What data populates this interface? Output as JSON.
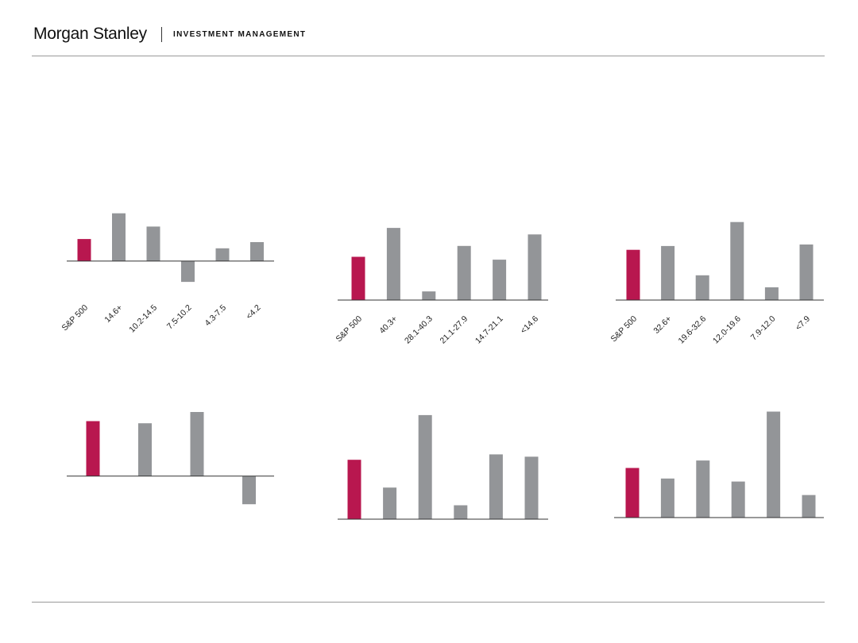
{
  "header": {
    "brand": "Morgan Stanley",
    "division": "INVESTMENT MANAGEMENT"
  },
  "colors": {
    "benchmark": "#B8174F",
    "bucket": "#939598",
    "axis": "#333333"
  },
  "chart_data": [
    {
      "type": "bar",
      "categories": [
        "S&P 500",
        "14.6+",
        "10.2-14.5",
        "7.5-10.2",
        "4.3-7.5",
        "<4.2"
      ],
      "values": [
        5.0,
        10.8,
        7.8,
        -4.7,
        2.9,
        4.3
      ],
      "ylim": [
        -7,
        12
      ],
      "grid": false
    },
    {
      "type": "bar",
      "categories": [
        "S&P 500",
        "40.3+",
        "28.1-40.3",
        "21.1-27.9",
        "14.7-21.1",
        "<14.6"
      ],
      "values": [
        6.0,
        10.0,
        1.2,
        7.5,
        5.6,
        9.1
      ],
      "ylim": [
        0,
        11
      ],
      "grid": false
    },
    {
      "type": "bar",
      "categories": [
        "S&P 500",
        "32.6+",
        "19.6-32.6",
        "12.0-19.6",
        "7.9-12.0",
        "<7.9"
      ],
      "values": [
        6.7,
        7.2,
        3.3,
        10.4,
        1.7,
        7.4
      ],
      "ylim": [
        0,
        11
      ],
      "grid": false
    },
    {
      "type": "bar",
      "categories": [
        "",
        "",
        "",
        ""
      ],
      "values": [
        7.8,
        7.5,
        9.1,
        -4.0
      ],
      "ylim": [
        -5,
        10
      ],
      "grid": false
    },
    {
      "type": "bar",
      "categories": [
        "",
        "",
        "",
        "",
        "",
        ""
      ],
      "values": [
        7.7,
        4.1,
        13.5,
        1.8,
        8.4,
        8.1
      ],
      "ylim": [
        0,
        14
      ],
      "grid": false
    },
    {
      "type": "bar",
      "categories": [
        "",
        "",
        "",
        "",
        "",
        ""
      ],
      "values": [
        6.6,
        5.2,
        7.6,
        4.8,
        14.1,
        3.0
      ],
      "ylim": [
        0,
        15
      ],
      "grid": false
    }
  ]
}
